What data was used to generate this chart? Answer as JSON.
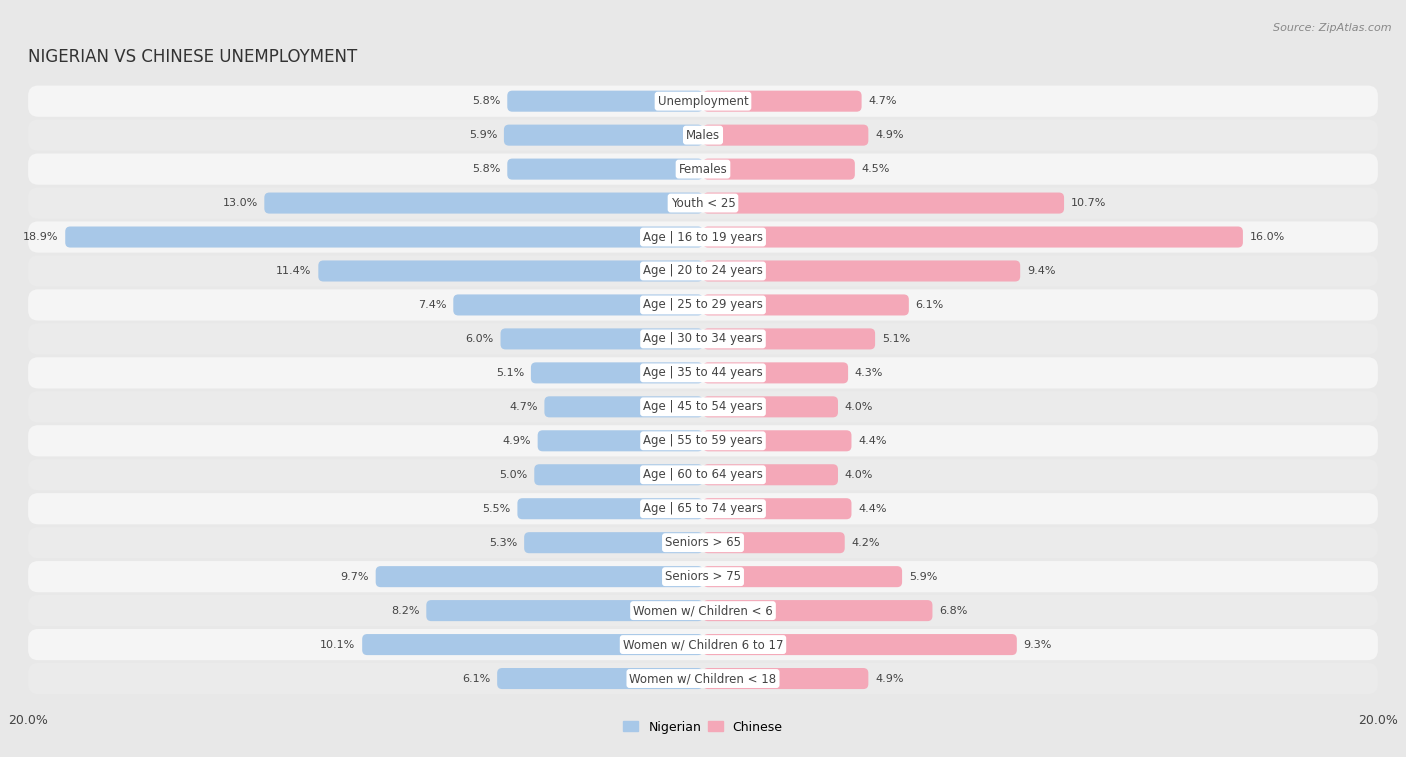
{
  "title": "NIGERIAN VS CHINESE UNEMPLOYMENT",
  "source": "Source: ZipAtlas.com",
  "categories": [
    "Unemployment",
    "Males",
    "Females",
    "Youth < 25",
    "Age | 16 to 19 years",
    "Age | 20 to 24 years",
    "Age | 25 to 29 years",
    "Age | 30 to 34 years",
    "Age | 35 to 44 years",
    "Age | 45 to 54 years",
    "Age | 55 to 59 years",
    "Age | 60 to 64 years",
    "Age | 65 to 74 years",
    "Seniors > 65",
    "Seniors > 75",
    "Women w/ Children < 6",
    "Women w/ Children 6 to 17",
    "Women w/ Children < 18"
  ],
  "nigerian": [
    5.8,
    5.9,
    5.8,
    13.0,
    18.9,
    11.4,
    7.4,
    6.0,
    5.1,
    4.7,
    4.9,
    5.0,
    5.5,
    5.3,
    9.7,
    8.2,
    10.1,
    6.1
  ],
  "chinese": [
    4.7,
    4.9,
    4.5,
    10.7,
    16.0,
    9.4,
    6.1,
    5.1,
    4.3,
    4.0,
    4.4,
    4.0,
    4.4,
    4.2,
    5.9,
    6.8,
    9.3,
    4.9
  ],
  "nigerian_color": "#a8c8e8",
  "chinese_color": "#f4a8b8",
  "background_color": "#e8e8e8",
  "row_color_odd": "#f5f5f5",
  "row_color_even": "#ebebeb",
  "axis_max": 20.0,
  "legend_labels": [
    "Nigerian",
    "Chinese"
  ],
  "title_fontsize": 12,
  "label_fontsize": 8.5,
  "value_fontsize": 8,
  "tick_fontsize": 9
}
